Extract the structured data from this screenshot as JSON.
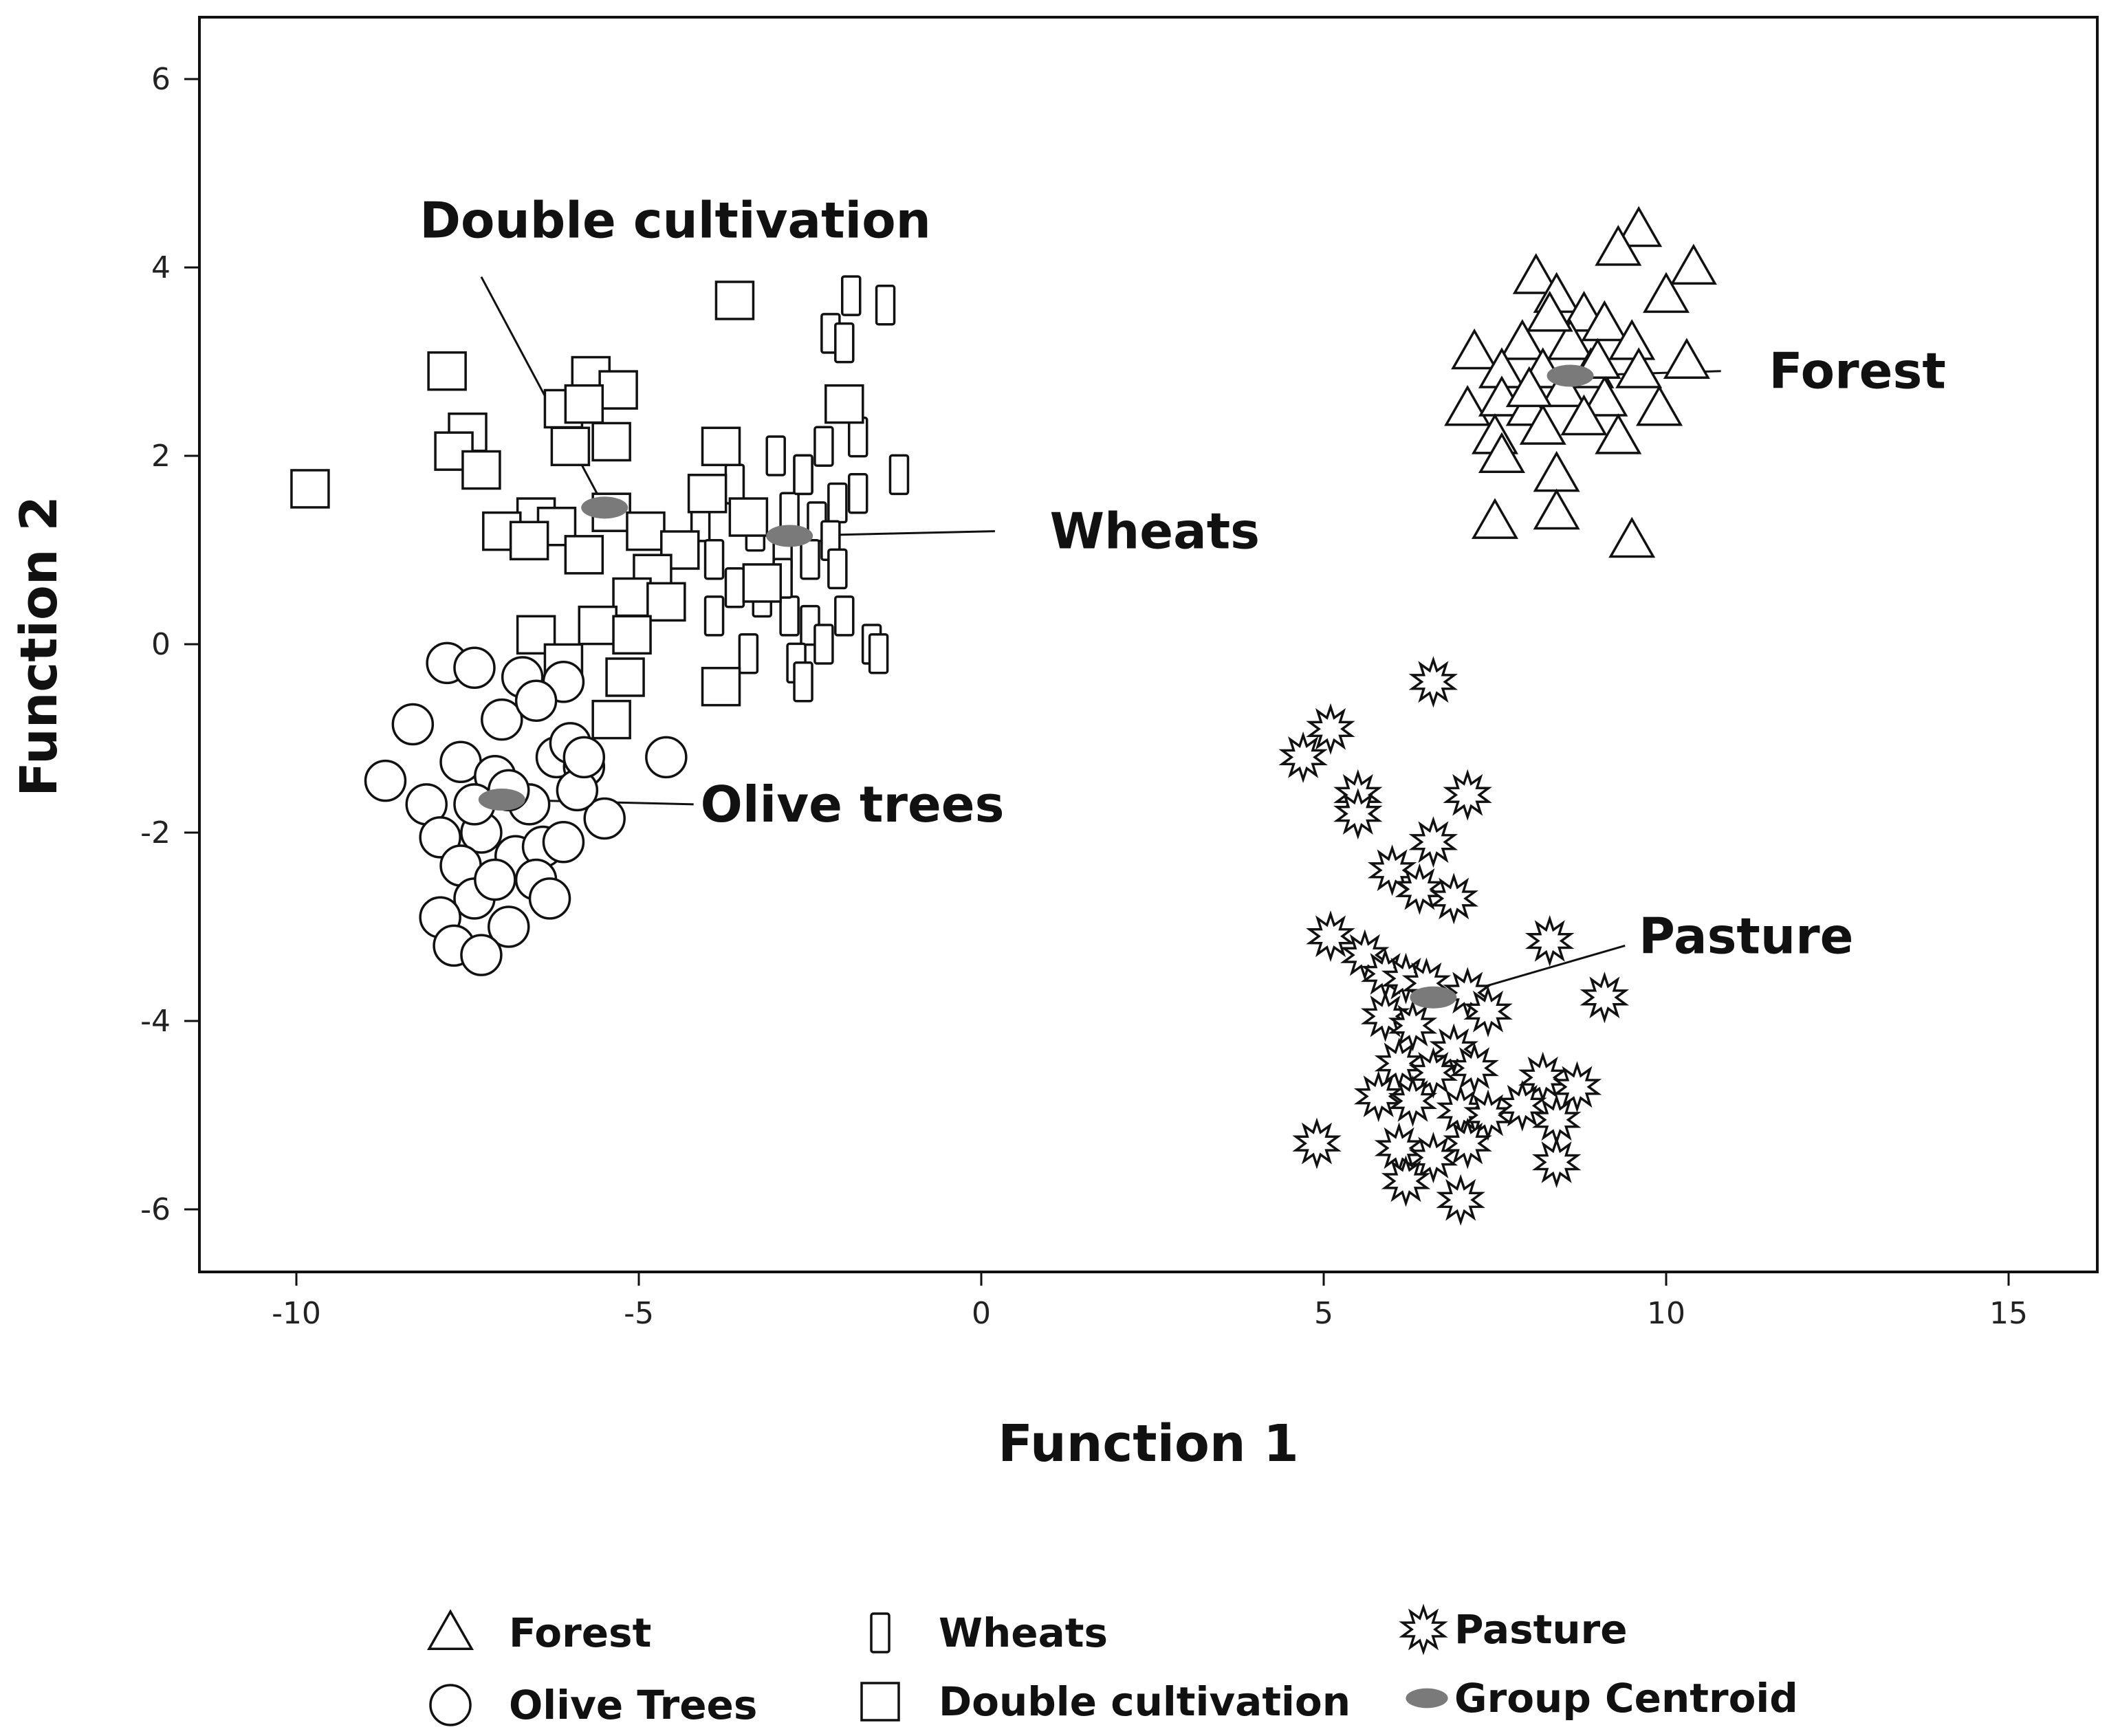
{
  "chart_data": {
    "type": "scatter",
    "xlabel": "Function 1",
    "ylabel": "Function 2",
    "xlim": [
      -11.5,
      16.5
    ],
    "ylim": [
      -6.7,
      6.7
    ],
    "x_ticks": [
      "-10",
      "-5",
      "0",
      "5",
      "10",
      "15"
    ],
    "y_ticks": [
      "6",
      "4",
      "2",
      "0",
      "-2",
      "-4",
      "-6"
    ],
    "x_tick_values": [
      -10,
      -5,
      0,
      5,
      10,
      15
    ],
    "y_tick_values": [
      6,
      4,
      2,
      0,
      -2,
      -4,
      -6
    ],
    "grid": false,
    "legend_position": "bottom",
    "legend": [
      {
        "symbol": "triangle",
        "label": "Forest"
      },
      {
        "symbol": "narrow-rect",
        "label": "Wheats"
      },
      {
        "symbol": "star",
        "label": "Pasture"
      },
      {
        "symbol": "circle",
        "label": "Olive Trees"
      },
      {
        "symbol": "square",
        "label": "Double cultivation"
      },
      {
        "symbol": "centroid",
        "label": "Group Centroid"
      }
    ],
    "annotations": [
      {
        "text": "Double cultivation",
        "x": -8.2,
        "y": 4.5,
        "line_from": [
          -7.3,
          3.9
        ],
        "line_to": [
          -5.5,
          1.45
        ]
      },
      {
        "text": "Wheats",
        "x": 1.0,
        "y": 1.2,
        "line_from": [
          0.2,
          1.2
        ],
        "line_to": [
          -2.8,
          1.15
        ]
      },
      {
        "text": "Forest",
        "x": 11.5,
        "y": 2.9,
        "line_from": [
          10.8,
          2.9
        ],
        "line_to": [
          8.6,
          2.85
        ]
      },
      {
        "text": "Olive trees",
        "x": -4.1,
        "y": -1.7,
        "line_from": [
          -4.2,
          -1.7
        ],
        "line_to": [
          -7.0,
          -1.65
        ]
      },
      {
        "text": "Pasture",
        "x": 9.6,
        "y": -3.1,
        "line_from": [
          9.4,
          -3.2
        ],
        "line_to": [
          6.8,
          -3.75
        ]
      }
    ],
    "centroid_color": "#7a7a7a",
    "series": [
      {
        "name": "Forest",
        "marker": "triangle",
        "centroid": [
          8.6,
          2.85
        ],
        "points": [
          [
            9.6,
            4.4
          ],
          [
            9.3,
            4.2
          ],
          [
            10.4,
            4.0
          ],
          [
            8.1,
            3.9
          ],
          [
            10.0,
            3.7
          ],
          [
            8.4,
            3.7
          ],
          [
            8.8,
            3.5
          ],
          [
            9.1,
            3.4
          ],
          [
            7.2,
            3.1
          ],
          [
            7.9,
            3.2
          ],
          [
            8.6,
            3.2
          ],
          [
            9.5,
            3.2
          ],
          [
            10.3,
            3.0
          ],
          [
            7.6,
            2.9
          ],
          [
            8.2,
            2.9
          ],
          [
            8.9,
            2.9
          ],
          [
            9.6,
            2.9
          ],
          [
            7.1,
            2.5
          ],
          [
            7.6,
            2.6
          ],
          [
            8.0,
            2.5
          ],
          [
            8.5,
            2.7
          ],
          [
            9.1,
            2.6
          ],
          [
            9.9,
            2.5
          ],
          [
            7.5,
            2.2
          ],
          [
            8.2,
            2.3
          ],
          [
            8.8,
            2.4
          ],
          [
            9.3,
            2.2
          ],
          [
            7.6,
            2.0
          ],
          [
            8.4,
            1.8
          ],
          [
            7.5,
            1.3
          ],
          [
            8.4,
            1.4
          ],
          [
            9.5,
            1.1
          ],
          [
            8.0,
            2.7
          ],
          [
            9.0,
            3.0
          ],
          [
            8.3,
            3.5
          ]
        ]
      },
      {
        "name": "Wheats",
        "marker": "narrow-rect",
        "centroid": [
          -2.8,
          1.15
        ],
        "points": [
          [
            -1.9,
            3.7
          ],
          [
            -1.4,
            3.6
          ],
          [
            -2.2,
            3.3
          ],
          [
            -2.0,
            3.2
          ],
          [
            -1.8,
            2.2
          ],
          [
            -2.6,
            1.8
          ],
          [
            -1.8,
            1.6
          ],
          [
            -1.2,
            1.8
          ],
          [
            -2.3,
            2.1
          ],
          [
            -3.0,
            2.0
          ],
          [
            -3.6,
            1.7
          ],
          [
            -2.8,
            1.4
          ],
          [
            -2.4,
            1.3
          ],
          [
            -2.1,
            1.5
          ],
          [
            -3.3,
            1.2
          ],
          [
            -2.9,
            1.0
          ],
          [
            -2.5,
            0.9
          ],
          [
            -2.2,
            1.1
          ],
          [
            -4.1,
            1.3
          ],
          [
            -3.9,
            0.9
          ],
          [
            -3.6,
            0.6
          ],
          [
            -3.2,
            0.5
          ],
          [
            -2.8,
            0.3
          ],
          [
            -2.5,
            0.2
          ],
          [
            -2.0,
            0.3
          ],
          [
            -2.3,
            0.0
          ],
          [
            -2.7,
            -0.2
          ],
          [
            -2.6,
            -0.4
          ],
          [
            -1.6,
            0.0
          ],
          [
            -1.5,
            -0.1
          ],
          [
            -3.4,
            -0.1
          ],
          [
            -3.9,
            0.3
          ],
          [
            -2.1,
            0.8
          ],
          [
            -2.9,
            0.7
          ],
          [
            -2.6,
            1.8
          ]
        ]
      },
      {
        "name": "Double cultivation",
        "marker": "square",
        "centroid": [
          -5.5,
          1.45
        ],
        "points": [
          [
            -9.8,
            1.65
          ],
          [
            -7.8,
            2.9
          ],
          [
            -5.7,
            2.85
          ],
          [
            -5.3,
            2.7
          ],
          [
            -6.1,
            2.5
          ],
          [
            -5.4,
            2.15
          ],
          [
            -7.5,
            2.25
          ],
          [
            -7.7,
            2.05
          ],
          [
            -7.3,
            1.85
          ],
          [
            -3.6,
            3.65
          ],
          [
            -2.0,
            2.55
          ],
          [
            -3.8,
            2.1
          ],
          [
            -4.0,
            1.6
          ],
          [
            -6.5,
            1.35
          ],
          [
            -7.0,
            1.2
          ],
          [
            -6.2,
            1.25
          ],
          [
            -5.4,
            1.4
          ],
          [
            -4.9,
            1.2
          ],
          [
            -4.4,
            1.0
          ],
          [
            -5.8,
            0.95
          ],
          [
            -4.8,
            0.75
          ],
          [
            -5.1,
            0.5
          ],
          [
            -4.6,
            0.45
          ],
          [
            -6.5,
            0.1
          ],
          [
            -5.6,
            0.2
          ],
          [
            -5.1,
            0.1
          ],
          [
            -3.2,
            0.65
          ],
          [
            -3.8,
            -0.45
          ],
          [
            -5.2,
            -0.35
          ],
          [
            -5.4,
            -0.8
          ],
          [
            -6.1,
            -0.2
          ],
          [
            -6.6,
            1.1
          ],
          [
            -3.4,
            1.35
          ],
          [
            -5.8,
            2.55
          ],
          [
            -6.0,
            2.1
          ]
        ]
      },
      {
        "name": "Olive Trees",
        "marker": "circle",
        "centroid": [
          -7.0,
          -1.65
        ],
        "points": [
          [
            -7.8,
            -0.2
          ],
          [
            -7.4,
            -0.25
          ],
          [
            -6.7,
            -0.35
          ],
          [
            -6.1,
            -0.4
          ],
          [
            -8.3,
            -0.85
          ],
          [
            -7.0,
            -0.8
          ],
          [
            -6.5,
            -0.6
          ],
          [
            -7.6,
            -1.25
          ],
          [
            -6.2,
            -1.2
          ],
          [
            -4.6,
            -1.2
          ],
          [
            -5.8,
            -1.3
          ],
          [
            -8.7,
            -1.45
          ],
          [
            -8.1,
            -1.7
          ],
          [
            -7.1,
            -1.4
          ],
          [
            -6.6,
            -1.7
          ],
          [
            -5.5,
            -1.85
          ],
          [
            -7.9,
            -2.05
          ],
          [
            -7.3,
            -2.0
          ],
          [
            -6.8,
            -2.25
          ],
          [
            -6.4,
            -2.15
          ],
          [
            -7.6,
            -2.35
          ],
          [
            -6.5,
            -2.5
          ],
          [
            -6.3,
            -2.7
          ],
          [
            -7.4,
            -2.7
          ],
          [
            -7.9,
            -2.9
          ],
          [
            -6.9,
            -3.0
          ],
          [
            -7.7,
            -3.2
          ],
          [
            -7.3,
            -3.3
          ],
          [
            -6.0,
            -1.05
          ],
          [
            -5.9,
            -1.55
          ],
          [
            -7.4,
            -1.7
          ],
          [
            -6.9,
            -1.55
          ],
          [
            -6.1,
            -2.1
          ],
          [
            -7.1,
            -2.5
          ],
          [
            -5.8,
            -1.2
          ]
        ]
      },
      {
        "name": "Pasture",
        "marker": "star",
        "centroid": [
          6.6,
          -3.75
        ],
        "points": [
          [
            6.6,
            -0.4
          ],
          [
            5.1,
            -0.9
          ],
          [
            4.7,
            -1.2
          ],
          [
            5.5,
            -1.6
          ],
          [
            5.5,
            -1.8
          ],
          [
            7.1,
            -1.6
          ],
          [
            6.6,
            -2.1
          ],
          [
            6.0,
            -2.4
          ],
          [
            6.4,
            -2.6
          ],
          [
            6.9,
            -2.7
          ],
          [
            8.3,
            -3.15
          ],
          [
            5.1,
            -3.1
          ],
          [
            5.6,
            -3.3
          ],
          [
            5.9,
            -3.5
          ],
          [
            6.2,
            -3.55
          ],
          [
            6.5,
            -3.6
          ],
          [
            7.1,
            -3.7
          ],
          [
            7.4,
            -3.9
          ],
          [
            9.1,
            -3.75
          ],
          [
            5.9,
            -3.95
          ],
          [
            6.3,
            -4.05
          ],
          [
            6.9,
            -4.3
          ],
          [
            6.1,
            -4.45
          ],
          [
            6.6,
            -4.55
          ],
          [
            7.2,
            -4.5
          ],
          [
            8.2,
            -4.6
          ],
          [
            8.7,
            -4.7
          ],
          [
            5.8,
            -4.8
          ],
          [
            6.3,
            -4.85
          ],
          [
            7.0,
            -4.95
          ],
          [
            7.4,
            -5.0
          ],
          [
            7.9,
            -4.9
          ],
          [
            8.4,
            -5.05
          ],
          [
            4.9,
            -5.3
          ],
          [
            6.1,
            -5.35
          ],
          [
            6.6,
            -5.45
          ],
          [
            7.1,
            -5.3
          ],
          [
            8.4,
            -5.5
          ],
          [
            7.0,
            -5.9
          ],
          [
            6.2,
            -5.7
          ]
        ]
      }
    ]
  }
}
